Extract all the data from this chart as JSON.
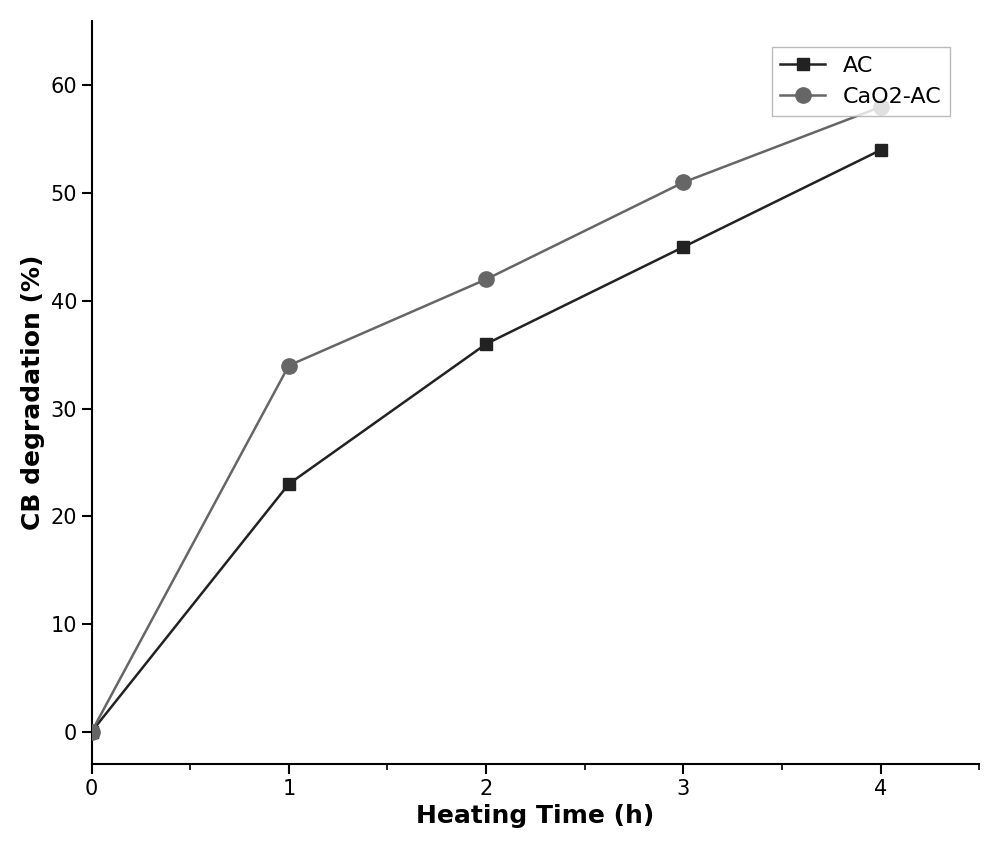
{
  "ac_x": [
    0,
    1,
    2,
    3,
    4
  ],
  "ac_y": [
    0,
    23,
    36,
    45,
    54
  ],
  "cao2_x": [
    0,
    1,
    2,
    3,
    4
  ],
  "cao2_y": [
    0,
    34,
    42,
    51,
    58
  ],
  "ac_color": "#222222",
  "cao2_color": "#666666",
  "ac_label": "AC",
  "cao2_label": "CaO2-AC",
  "xlabel": "Heating Time (h)",
  "ylabel": "CB degradation (%)",
  "xlim": [
    0,
    4.5
  ],
  "ylim": [
    -3,
    66
  ],
  "yticks": [
    0,
    10,
    20,
    30,
    40,
    50,
    60
  ],
  "xticks": [
    0,
    1,
    2,
    3,
    4
  ],
  "legend_fontsize": 16,
  "axis_label_fontsize": 18,
  "tick_fontsize": 15
}
